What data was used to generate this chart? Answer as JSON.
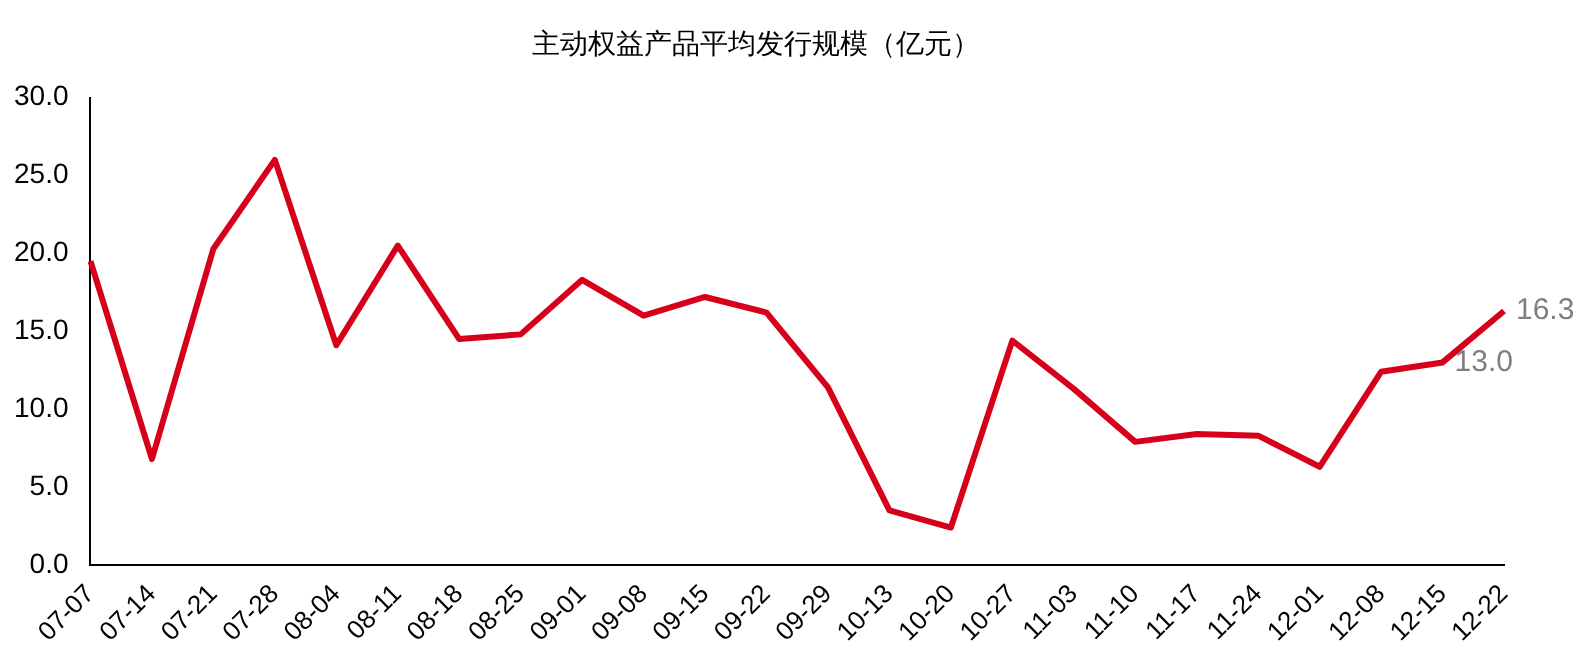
{
  "chart_data": {
    "type": "line",
    "title": "主动权益产品平均发行规模（亿元）",
    "categories": [
      "07-07",
      "07-14",
      "07-21",
      "07-28",
      "08-04",
      "08-11",
      "08-18",
      "08-25",
      "09-01",
      "09-08",
      "09-15",
      "09-22",
      "09-29",
      "10-13",
      "10-20",
      "10-27",
      "11-03",
      "11-10",
      "11-17",
      "11-24",
      "12-01",
      "12-08",
      "12-15",
      "12-22"
    ],
    "series": [
      {
        "color": "#d7001a",
        "values": [
          19.5,
          6.8,
          20.3,
          26.0,
          14.1,
          20.5,
          14.5,
          14.8,
          18.3,
          16.0,
          17.2,
          16.2,
          11.4,
          3.5,
          2.4,
          14.4,
          11.3,
          7.9,
          8.4,
          8.3,
          6.3,
          12.4,
          13.0,
          16.3
        ],
        "value_labels": [
          null,
          null,
          null,
          null,
          null,
          null,
          null,
          null,
          null,
          null,
          null,
          null,
          null,
          null,
          null,
          null,
          null,
          null,
          null,
          null,
          null,
          null,
          "13.0",
          "16.3"
        ]
      }
    ],
    "ylim": [
      0,
      30
    ],
    "yticks": [
      {
        "value": 0,
        "label": "0.0"
      },
      {
        "value": 5,
        "label": "5.0"
      },
      {
        "value": 10,
        "label": "10.0"
      },
      {
        "value": 15,
        "label": "15.0"
      },
      {
        "value": 20,
        "label": "20.0"
      },
      {
        "value": 25,
        "label": "25.0"
      },
      {
        "value": 30,
        "label": "30.0"
      }
    ],
    "grid": false,
    "legend": false,
    "marker": "none",
    "line_style": "solid"
  }
}
